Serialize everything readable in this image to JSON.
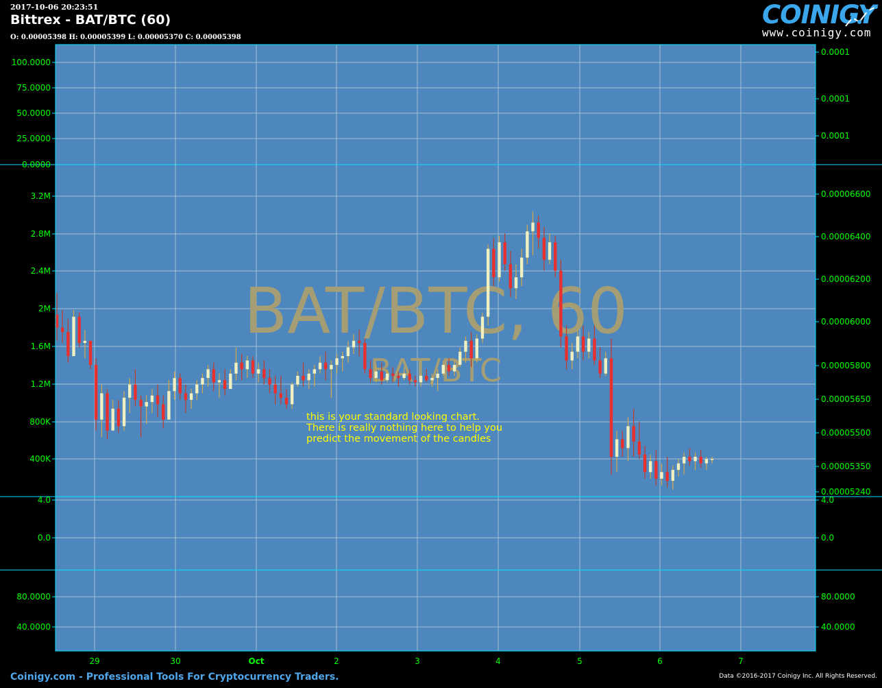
{
  "header": {
    "datetime": "2017-10-06 20:23:51",
    "title": "Bittrex - BAT/BTC (60)",
    "ohlc": "O: 0.00005398 H: 0.00005399 L: 0.00005370 C: 0.00005398"
  },
  "logo": {
    "word": "COINIGY",
    "url": "www.coinigy.com",
    "alt": "Coinigy logo"
  },
  "footer": {
    "left": "Coinigy.com - Professional Tools For Cryptocurrency Traders.",
    "right": "Data ©2016-2017 Coinigy Inc. All Rights Reserved."
  },
  "colors": {
    "plot_background": "#4d87bd",
    "border": "#00e5ff",
    "axis_text": "#00ff00",
    "bull_candle": "#f0f0c0",
    "bear_candle": "#e8302e",
    "watermark": "#a59d74",
    "annotation": "#ffff00",
    "brand": "#4fa6ea"
  },
  "chart_data": {
    "type": "candlestick",
    "watermark": {
      "main": "BAT/BTC, 60",
      "sub": "BAT/BTC"
    },
    "annotation": [
      "this is your standard looking chart.",
      "There is really nothing here to help you",
      "predict the movement of the candles"
    ],
    "x_axis": {
      "labels": [
        "29",
        "30",
        "Oct",
        "2",
        "3",
        "4",
        "5",
        "6",
        "7"
      ],
      "grid": true
    },
    "panes": [
      {
        "name": "upper-indicator",
        "left_ticks": [
          "100.0000",
          "75.0000",
          "50.0000",
          "25.0000",
          "0.0000"
        ],
        "right_ticks": [
          "0.0001",
          "0.0001",
          "0.0001"
        ]
      },
      {
        "name": "price",
        "left_ticks": [
          "3.2M",
          "2.8M",
          "2.4M",
          "2M",
          "1.6M",
          "1.2M",
          "800K",
          "400K"
        ],
        "right_ticks": [
          "0.00006600",
          "0.00006400",
          "0.00006200",
          "0.00006000",
          "0.00005800",
          "0.00005650",
          "0.00005500",
          "0.00005350",
          "0.00005240"
        ],
        "ylim": [
          5.24e-05,
          6.6e-05
        ],
        "candles_ohlc": [
          [
            6.05e-05,
            6.15e-05,
            5.93e-05,
            5.99e-05
          ],
          [
            5.99e-05,
            6.07e-05,
            5.92e-05,
            5.97e-05
          ],
          [
            5.97e-05,
            6.03e-05,
            5.83e-05,
            5.86e-05
          ],
          [
            5.86e-05,
            6.07e-05,
            5.86e-05,
            6.04e-05
          ],
          [
            6.04e-05,
            6.06e-05,
            5.9e-05,
            5.92e-05
          ],
          [
            5.92e-05,
            5.98e-05,
            5.85e-05,
            5.93e-05
          ],
          [
            5.93e-05,
            5.93e-05,
            5.8e-05,
            5.82e-05
          ],
          [
            5.82e-05,
            5.85e-05,
            5.52e-05,
            5.57e-05
          ],
          [
            5.57e-05,
            5.73e-05,
            5.49e-05,
            5.69e-05
          ],
          [
            5.69e-05,
            5.71e-05,
            5.48e-05,
            5.52e-05
          ],
          [
            5.52e-05,
            5.66e-05,
            5.52e-05,
            5.62e-05
          ],
          [
            5.62e-05,
            5.66e-05,
            5.51e-05,
            5.54e-05
          ],
          [
            5.54e-05,
            5.7e-05,
            5.52e-05,
            5.67e-05
          ],
          [
            5.67e-05,
            5.76e-05,
            5.6e-05,
            5.73e-05
          ],
          [
            5.73e-05,
            5.8e-05,
            5.63e-05,
            5.66e-05
          ],
          [
            5.66e-05,
            5.68e-05,
            5.49e-05,
            5.63e-05
          ],
          [
            5.63e-05,
            5.68e-05,
            5.55e-05,
            5.65e-05
          ],
          [
            5.65e-05,
            5.71e-05,
            5.6e-05,
            5.68e-05
          ],
          [
            5.68e-05,
            5.73e-05,
            5.58e-05,
            5.64e-05
          ],
          [
            5.64e-05,
            5.68e-05,
            5.53e-05,
            5.57e-05
          ],
          [
            5.57e-05,
            5.75e-05,
            5.57e-05,
            5.7e-05
          ],
          [
            5.7e-05,
            5.79e-05,
            5.66e-05,
            5.76e-05
          ],
          [
            5.76e-05,
            5.78e-05,
            5.66e-05,
            5.69e-05
          ],
          [
            5.69e-05,
            5.73e-05,
            5.6e-05,
            5.66e-05
          ],
          [
            5.66e-05,
            5.71e-05,
            5.62e-05,
            5.69e-05
          ],
          [
            5.69e-05,
            5.75e-05,
            5.66e-05,
            5.73e-05
          ],
          [
            5.73e-05,
            5.78e-05,
            5.69e-05,
            5.76e-05
          ],
          [
            5.76e-05,
            5.82e-05,
            5.72e-05,
            5.8e-05
          ],
          [
            5.8e-05,
            5.83e-05,
            5.7e-05,
            5.74e-05
          ],
          [
            5.74e-05,
            5.78e-05,
            5.67e-05,
            5.75e-05
          ],
          [
            5.75e-05,
            5.8e-05,
            5.68e-05,
            5.71e-05
          ],
          [
            5.71e-05,
            5.8e-05,
            5.71e-05,
            5.78e-05
          ],
          [
            5.78e-05,
            5.9e-05,
            5.75e-05,
            5.83e-05
          ],
          [
            5.83e-05,
            5.87e-05,
            5.75e-05,
            5.8e-05
          ],
          [
            5.8e-05,
            5.86e-05,
            5.76e-05,
            5.84e-05
          ],
          [
            5.84e-05,
            5.86e-05,
            5.76e-05,
            5.78e-05
          ],
          [
            5.78e-05,
            5.83e-05,
            5.74e-05,
            5.8e-05
          ],
          [
            5.8e-05,
            5.84e-05,
            5.73e-05,
            5.76e-05
          ],
          [
            5.76e-05,
            5.8e-05,
            5.69e-05,
            5.73e-05
          ],
          [
            5.73e-05,
            5.77e-05,
            5.64e-05,
            5.69e-05
          ],
          [
            5.69e-05,
            5.77e-05,
            5.64e-05,
            5.67e-05
          ],
          [
            5.67e-05,
            5.71e-05,
            5.62e-05,
            5.64e-05
          ],
          [
            5.64e-05,
            5.74e-05,
            5.62e-05,
            5.73e-05
          ],
          [
            5.73e-05,
            5.79e-05,
            5.72e-05,
            5.77e-05
          ],
          [
            5.77e-05,
            5.83e-05,
            5.72e-05,
            5.75e-05
          ],
          [
            5.75e-05,
            5.8e-05,
            5.71e-05,
            5.78e-05
          ],
          [
            5.78e-05,
            5.82e-05,
            5.72e-05,
            5.8e-05
          ],
          [
            5.8e-05,
            5.86e-05,
            5.78e-05,
            5.83e-05
          ],
          [
            5.83e-05,
            5.88e-05,
            5.75e-05,
            5.8e-05
          ],
          [
            5.8e-05,
            5.84e-05,
            5.67e-05,
            5.82e-05
          ],
          [
            5.82e-05,
            5.87e-05,
            5.78e-05,
            5.85e-05
          ],
          [
            5.85e-05,
            5.88e-05,
            5.79e-05,
            5.86e-05
          ],
          [
            5.86e-05,
            5.93e-05,
            5.83e-05,
            5.9e-05
          ],
          [
            5.9e-05,
            5.96e-05,
            5.87e-05,
            5.93e-05
          ],
          [
            5.93e-05,
            5.98e-05,
            5.86e-05,
            5.92e-05
          ],
          [
            5.92e-05,
            5.94e-05,
            5.78e-05,
            5.8e-05
          ],
          [
            5.8e-05,
            5.84e-05,
            5.74e-05,
            5.76e-05
          ],
          [
            5.76e-05,
            5.82e-05,
            5.74e-05,
            5.79e-05
          ],
          [
            5.79e-05,
            5.83e-05,
            5.73e-05,
            5.75e-05
          ],
          [
            5.75e-05,
            5.8e-05,
            5.74e-05,
            5.78e-05
          ],
          [
            5.78e-05,
            5.81e-05,
            5.74e-05,
            5.77e-05
          ],
          [
            5.77e-05,
            5.79e-05,
            5.72e-05,
            5.76e-05
          ],
          [
            5.76e-05,
            5.81e-05,
            5.75e-05,
            5.78e-05
          ],
          [
            5.78e-05,
            5.8e-05,
            5.73e-05,
            5.75e-05
          ],
          [
            5.75e-05,
            5.77e-05,
            5.72e-05,
            5.74e-05
          ],
          [
            5.74e-05,
            5.78e-05,
            5.72e-05,
            5.77e-05
          ],
          [
            5.77e-05,
            5.8e-05,
            5.74e-05,
            5.75e-05
          ],
          [
            5.75e-05,
            5.78e-05,
            5.72e-05,
            5.76e-05
          ],
          [
            5.76e-05,
            5.8e-05,
            5.7e-05,
            5.78e-05
          ],
          [
            5.78e-05,
            5.84e-05,
            5.77e-05,
            5.82e-05
          ],
          [
            5.82e-05,
            5.85e-05,
            5.77e-05,
            5.79e-05
          ],
          [
            5.79e-05,
            5.84e-05,
            5.77e-05,
            5.82e-05
          ],
          [
            5.82e-05,
            5.9e-05,
            5.81e-05,
            5.88e-05
          ],
          [
            5.88e-05,
            5.95e-05,
            5.83e-05,
            5.93e-05
          ],
          [
            5.93e-05,
            5.97e-05,
            5.81e-05,
            5.85e-05
          ],
          [
            5.85e-05,
            5.96e-05,
            5.83e-05,
            5.94e-05
          ],
          [
            5.94e-05,
            6.06e-05,
            5.92e-05,
            6.04e-05
          ],
          [
            6.04e-05,
            6.37e-05,
            6e-05,
            6.35e-05
          ],
          [
            6.35e-05,
            6.4e-05,
            6.18e-05,
            6.22e-05
          ],
          [
            6.22e-05,
            6.41e-05,
            6.2e-05,
            6.38e-05
          ],
          [
            6.38e-05,
            6.42e-05,
            6.25e-05,
            6.28e-05
          ],
          [
            6.28e-05,
            6.34e-05,
            6.13e-05,
            6.17e-05
          ],
          [
            6.17e-05,
            6.28e-05,
            6.12e-05,
            6.22e-05
          ],
          [
            6.22e-05,
            6.35e-05,
            6.18e-05,
            6.31e-05
          ],
          [
            6.31e-05,
            6.46e-05,
            6.28e-05,
            6.43e-05
          ],
          [
            6.43e-05,
            6.52e-05,
            6.32e-05,
            6.47e-05
          ],
          [
            6.47e-05,
            6.5e-05,
            6.35e-05,
            6.4e-05
          ],
          [
            6.4e-05,
            6.45e-05,
            6.25e-05,
            6.3e-05
          ],
          [
            6.3e-05,
            6.42e-05,
            6.28e-05,
            6.38e-05
          ],
          [
            6.38e-05,
            6.41e-05,
            6.22e-05,
            6.25e-05
          ],
          [
            6.25e-05,
            6.3e-05,
            5.9e-05,
            5.95e-05
          ],
          [
            5.95e-05,
            6e-05,
            5.8e-05,
            5.84e-05
          ],
          [
            5.84e-05,
            5.92e-05,
            5.8e-05,
            5.88e-05
          ],
          [
            5.88e-05,
            5.98e-05,
            5.85e-05,
            5.95e-05
          ],
          [
            5.95e-05,
            6e-05,
            5.84e-05,
            5.88e-05
          ],
          [
            5.88e-05,
            5.97e-05,
            5.85e-05,
            5.94e-05
          ],
          [
            5.94e-05,
            6e-05,
            5.82e-05,
            5.84e-05
          ],
          [
            5.84e-05,
            5.9e-05,
            5.76e-05,
            5.78e-05
          ],
          [
            5.78e-05,
            5.88e-05,
            5.77e-05,
            5.85e-05
          ],
          [
            5.85e-05,
            5.94e-05,
            5.32e-05,
            5.4e-05
          ],
          [
            5.4e-05,
            5.52e-05,
            5.33e-05,
            5.48e-05
          ],
          [
            5.48e-05,
            5.52e-05,
            5.4e-05,
            5.44e-05
          ],
          [
            5.44e-05,
            5.58e-05,
            5.38e-05,
            5.54e-05
          ],
          [
            5.54e-05,
            5.62e-05,
            5.4e-05,
            5.47e-05
          ],
          [
            5.47e-05,
            5.56e-05,
            5.39e-05,
            5.41e-05
          ],
          [
            5.41e-05,
            5.45e-05,
            5.3e-05,
            5.33e-05
          ],
          [
            5.33e-05,
            5.41e-05,
            5.3e-05,
            5.38e-05
          ],
          [
            5.38e-05,
            5.43e-05,
            5.27e-05,
            5.3e-05
          ],
          [
            5.3e-05,
            5.37e-05,
            5.27e-05,
            5.33e-05
          ],
          [
            5.33e-05,
            5.4e-05,
            5.26e-05,
            5.29e-05
          ],
          [
            5.29e-05,
            5.36e-05,
            5.25e-05,
            5.34e-05
          ],
          [
            5.34e-05,
            5.39e-05,
            5.31e-05,
            5.37e-05
          ],
          [
            5.37e-05,
            5.42e-05,
            5.32e-05,
            5.4e-05
          ],
          [
            5.4e-05,
            5.44e-05,
            5.36e-05,
            5.38e-05
          ],
          [
            5.38e-05,
            5.42e-05,
            5.34e-05,
            5.4e-05
          ],
          [
            5.4e-05,
            5.43e-05,
            5.35e-05,
            5.37e-05
          ],
          [
            5.37e-05,
            5.4e-05,
            5.34e-05,
            5.39e-05
          ],
          [
            5.39e-05,
            5.4e-05,
            5.37e-05,
            5.39e-05
          ]
        ]
      },
      {
        "name": "middle-indicator",
        "left_ticks": [
          "4.0",
          "0.0"
        ],
        "right_ticks": [
          "4.0",
          "0.0"
        ]
      },
      {
        "name": "lower-indicator",
        "left_ticks": [
          "80.0000",
          "40.0000"
        ],
        "right_ticks": [
          "80.0000",
          "40.0000"
        ]
      }
    ]
  }
}
